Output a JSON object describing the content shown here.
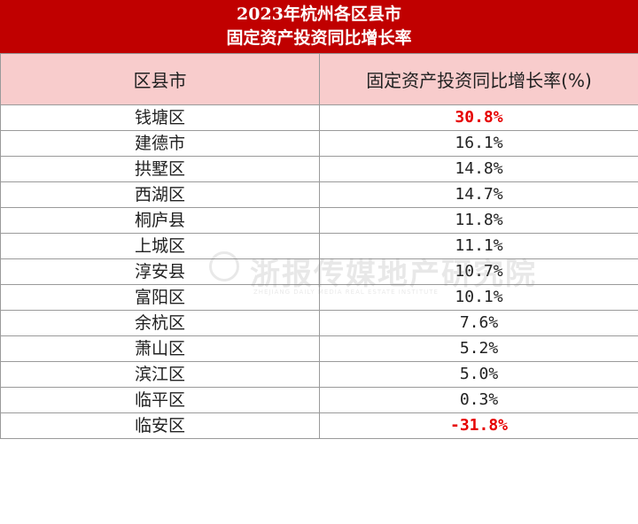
{
  "title": {
    "line1": "2023年杭州各区县市",
    "line2": "固定资产投资同比增长率"
  },
  "table": {
    "headers": [
      "区县市",
      "固定资产投资同比增长率(%)"
    ],
    "rows": [
      {
        "district": "钱塘区",
        "growth": "30.8%",
        "highlight": true
      },
      {
        "district": "建德市",
        "growth": "16.1%",
        "highlight": false
      },
      {
        "district": "拱墅区",
        "growth": "14.8%",
        "highlight": false
      },
      {
        "district": "西湖区",
        "growth": "14.7%",
        "highlight": false
      },
      {
        "district": "桐庐县",
        "growth": "11.8%",
        "highlight": false
      },
      {
        "district": "上城区",
        "growth": "11.1%",
        "highlight": false
      },
      {
        "district": "淳安县",
        "growth": "10.7%",
        "highlight": false
      },
      {
        "district": "富阳区",
        "growth": "10.1%",
        "highlight": false
      },
      {
        "district": "余杭区",
        "growth": "7.6%",
        "highlight": false
      },
      {
        "district": "萧山区",
        "growth": "5.2%",
        "highlight": false
      },
      {
        "district": "滨江区",
        "growth": "5.0%",
        "highlight": false
      },
      {
        "district": "临平区",
        "growth": "0.3%",
        "highlight": false
      },
      {
        "district": "临安区",
        "growth": "-31.8%",
        "highlight": true
      }
    ]
  },
  "watermark": {
    "text": "浙报传媒地产研究院",
    "subtext": "ZHEJIANG DAILY MEDIA REAL ESTATE INSTITUTE"
  },
  "colors": {
    "title_bg": "#c00000",
    "header_bg": "#f8cccc",
    "highlight_text": "#e60000"
  }
}
